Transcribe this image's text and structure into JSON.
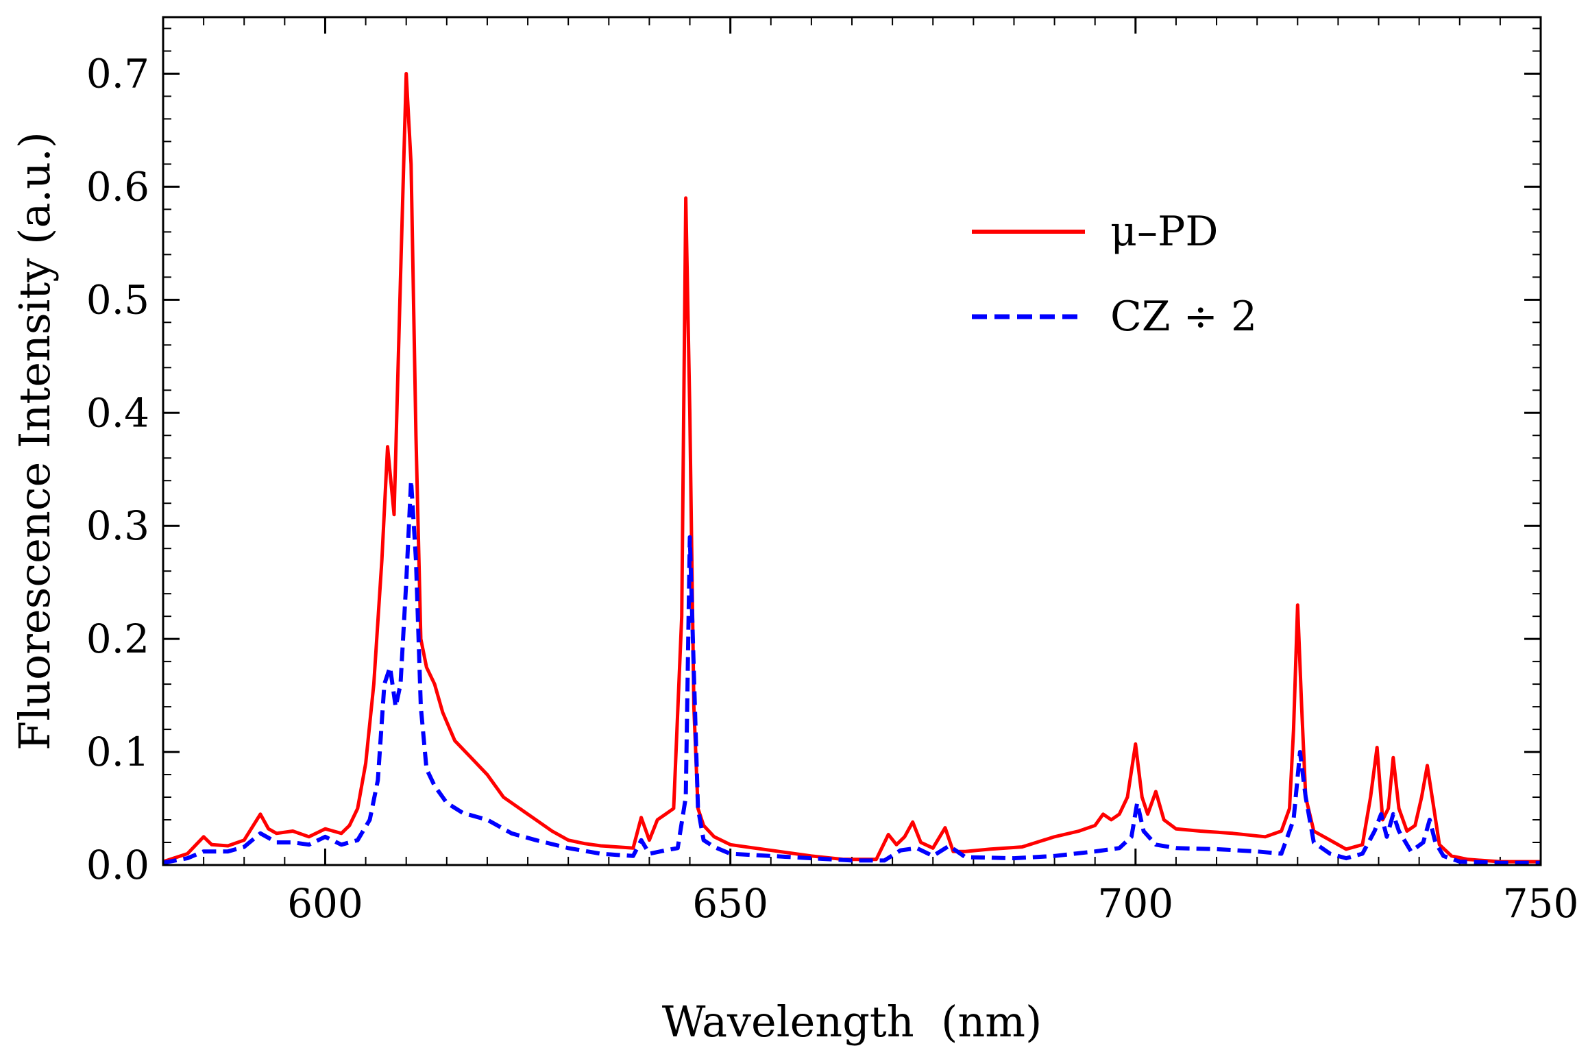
{
  "chart_data": {
    "type": "line",
    "title": "",
    "xlabel": "Wavelength  (nm)",
    "ylabel": "Fluorescence Intensity (a.u.)",
    "xlim": [
      580,
      750
    ],
    "ylim": [
      0.0,
      0.75
    ],
    "x_ticks": [
      600,
      650,
      700,
      750
    ],
    "x_tick_labels": [
      "600",
      "650",
      "700",
      "750"
    ],
    "y_ticks": [
      0.0,
      0.1,
      0.2,
      0.3,
      0.4,
      0.5,
      0.6,
      0.7
    ],
    "y_tick_labels": [
      "0.0",
      "0.1",
      "0.2",
      "0.3",
      "0.4",
      "0.5",
      "0.6",
      "0.7"
    ],
    "grid": false,
    "legend_position": "top-right",
    "series": [
      {
        "name": "μ–PD",
        "color": "#ff0000",
        "style": "solid",
        "x": [
          580,
          583,
          585,
          586,
          588,
          590,
          592,
          593,
          594,
          596,
          598,
          600,
          601,
          602,
          603,
          604,
          605,
          606,
          607,
          607.7,
          608.5,
          609.3,
          610,
          610.6,
          611.2,
          611.8,
          612.5,
          613.5,
          614.5,
          616,
          618,
          620,
          622,
          624,
          626,
          628,
          630,
          632,
          634,
          636,
          638,
          639,
          640,
          641,
          642,
          643,
          644,
          644.5,
          645,
          645.5,
          646,
          646.7,
          648,
          650,
          653,
          656,
          660,
          664,
          668,
          669.5,
          670.5,
          671.5,
          672.5,
          673.5,
          675,
          676.5,
          677.5,
          679,
          682,
          686,
          690,
          693,
          695,
          696,
          697,
          698,
          699,
          700,
          700.8,
          701.5,
          702.5,
          703.5,
          705,
          708,
          712,
          716,
          718,
          719,
          719.5,
          720,
          720.5,
          721,
          722,
          724,
          726,
          728,
          729,
          729.8,
          730.5,
          731.2,
          731.8,
          732.5,
          733.5,
          734.5,
          735.3,
          736,
          736.6,
          737.5,
          739,
          741,
          745,
          750
        ],
        "values": [
          0.003,
          0.01,
          0.025,
          0.018,
          0.017,
          0.022,
          0.045,
          0.032,
          0.028,
          0.03,
          0.025,
          0.032,
          0.03,
          0.028,
          0.035,
          0.05,
          0.09,
          0.16,
          0.27,
          0.37,
          0.31,
          0.52,
          0.7,
          0.62,
          0.38,
          0.2,
          0.175,
          0.16,
          0.135,
          0.11,
          0.095,
          0.08,
          0.06,
          0.05,
          0.04,
          0.03,
          0.022,
          0.019,
          0.017,
          0.016,
          0.015,
          0.042,
          0.022,
          0.04,
          0.045,
          0.05,
          0.22,
          0.59,
          0.4,
          0.14,
          0.05,
          0.035,
          0.025,
          0.018,
          0.015,
          0.012,
          0.008,
          0.005,
          0.005,
          0.027,
          0.018,
          0.025,
          0.038,
          0.02,
          0.015,
          0.033,
          0.012,
          0.012,
          0.014,
          0.016,
          0.025,
          0.03,
          0.035,
          0.045,
          0.04,
          0.045,
          0.06,
          0.107,
          0.06,
          0.045,
          0.065,
          0.04,
          0.032,
          0.03,
          0.028,
          0.025,
          0.03,
          0.05,
          0.12,
          0.23,
          0.14,
          0.06,
          0.03,
          0.022,
          0.014,
          0.018,
          0.06,
          0.104,
          0.04,
          0.05,
          0.095,
          0.05,
          0.03,
          0.035,
          0.06,
          0.088,
          0.06,
          0.018,
          0.008,
          0.005,
          0.003,
          0.003
        ]
      },
      {
        "name": "CZ ÷ 2",
        "color": "#0000ff",
        "style": "dashed",
        "x": [
          580,
          583,
          585,
          588,
          590,
          592,
          594,
          596,
          598,
          600,
          602,
          604,
          605.5,
          606.5,
          607.3,
          608,
          608.7,
          609.3,
          610,
          610.6,
          611.2,
          611.8,
          612.5,
          613.5,
          615,
          617,
          620,
          623,
          626,
          630,
          634,
          636,
          638,
          639,
          640,
          642,
          643.5,
          644.5,
          645,
          645.5,
          646,
          646.7,
          648,
          650,
          655,
          660,
          665,
          669,
          671,
          673,
          675,
          677,
          679,
          685,
          690,
          695,
          698,
          699.5,
          700.2,
          701,
          702.5,
          705,
          710,
          715,
          718,
          719.5,
          720.3,
          721,
          722,
          724,
          726,
          728,
          729.5,
          730.3,
          731,
          731.8,
          732.5,
          734,
          735.5,
          736.3,
          737,
          738,
          740,
          745,
          750
        ],
        "values": [
          0.002,
          0.006,
          0.012,
          0.012,
          0.016,
          0.028,
          0.02,
          0.02,
          0.018,
          0.025,
          0.018,
          0.022,
          0.04,
          0.075,
          0.16,
          0.175,
          0.14,
          0.16,
          0.25,
          0.34,
          0.27,
          0.14,
          0.085,
          0.07,
          0.055,
          0.046,
          0.04,
          0.028,
          0.022,
          0.015,
          0.01,
          0.009,
          0.008,
          0.022,
          0.01,
          0.013,
          0.015,
          0.06,
          0.29,
          0.17,
          0.05,
          0.022,
          0.016,
          0.01,
          0.008,
          0.006,
          0.004,
          0.004,
          0.013,
          0.015,
          0.008,
          0.017,
          0.007,
          0.006,
          0.008,
          0.012,
          0.015,
          0.025,
          0.055,
          0.03,
          0.018,
          0.015,
          0.014,
          0.012,
          0.01,
          0.04,
          0.1,
          0.06,
          0.02,
          0.01,
          0.006,
          0.01,
          0.03,
          0.045,
          0.025,
          0.045,
          0.03,
          0.012,
          0.02,
          0.04,
          0.02,
          0.008,
          0.003,
          0.002,
          0.002
        ]
      }
    ]
  }
}
